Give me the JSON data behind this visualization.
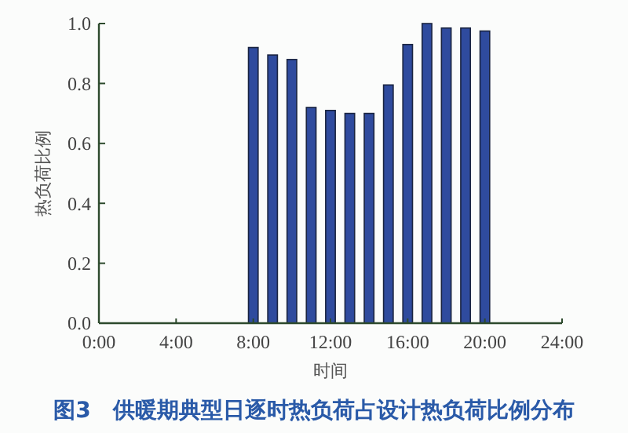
{
  "chart_data": {
    "type": "bar",
    "title": "图3　供暖期典型日逐时热负荷占设计热负荷比例分布",
    "xlabel": "时间",
    "ylabel": "热负荷比例",
    "x": [
      8,
      9,
      10,
      11,
      12,
      13,
      14,
      15,
      16,
      17,
      18,
      19,
      20
    ],
    "values": [
      0.92,
      0.895,
      0.88,
      0.72,
      0.71,
      0.7,
      0.7,
      0.795,
      0.93,
      1.0,
      0.985,
      0.985,
      0.975
    ],
    "color": "#2f4b9e",
    "xlim": [
      0,
      24
    ],
    "xticks": [
      {
        "value": 0,
        "label": "0:00"
      },
      {
        "value": 4,
        "label": "4:00"
      },
      {
        "value": 8,
        "label": "8:00"
      },
      {
        "value": 12,
        "label": "12:00"
      },
      {
        "value": 16,
        "label": "16:00"
      },
      {
        "value": 20,
        "label": "20:00"
      },
      {
        "value": 24,
        "label": "24:00"
      }
    ],
    "ylim": [
      0,
      1.0
    ],
    "yticks": [
      {
        "value": 0,
        "label": "0.0"
      },
      {
        "value": 0.2,
        "label": "0.2"
      },
      {
        "value": 0.4,
        "label": "0.4"
      },
      {
        "value": 0.6,
        "label": "0.6"
      },
      {
        "value": 0.8,
        "label": "0.8"
      },
      {
        "value": 1.0,
        "label": "1.0"
      }
    ],
    "grid": false
  }
}
